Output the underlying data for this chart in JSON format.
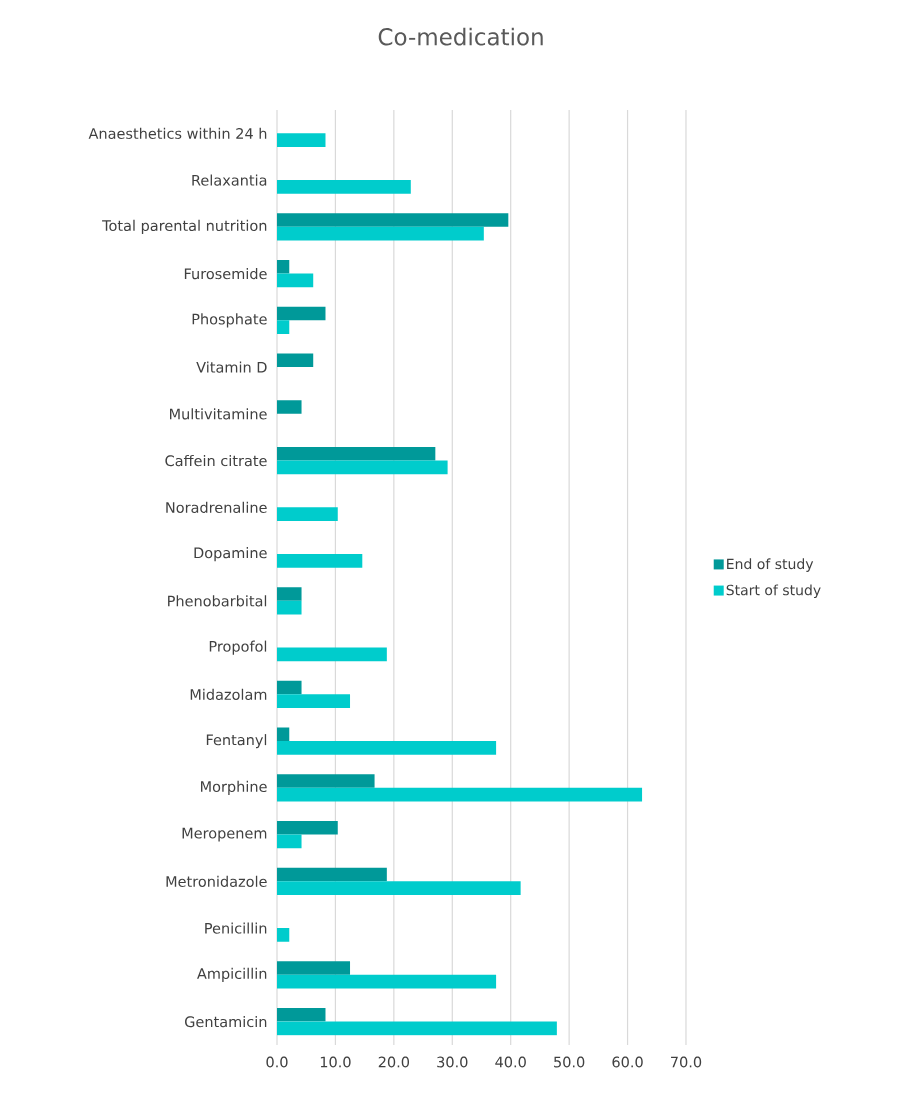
{
  "chart_data": {
    "type": "bar",
    "orientation": "horizontal",
    "title": "Co-medication",
    "categories": [
      "Anaesthetics within 24 h",
      "Relaxantia",
      "Total parental nutrition",
      "Furosemide",
      "Phosphate",
      "Vitamin D",
      "Multivitamine",
      "Caffein citrate",
      "Noradrenaline",
      "Dopamine",
      "Phenobarbital",
      "Propofol",
      "Midazolam",
      "Fentanyl",
      "Morphine",
      "Meropenem",
      "Metronidazole",
      "Penicillin",
      "Ampicillin",
      "Gentamicin"
    ],
    "series": [
      {
        "name": "End of study",
        "color": "#009999",
        "values": [
          null,
          null,
          39.6,
          2.1,
          8.3,
          6.2,
          4.2,
          27.1,
          null,
          null,
          4.2,
          null,
          4.2,
          2.1,
          16.7,
          10.4,
          18.8,
          null,
          12.5,
          8.3
        ]
      },
      {
        "name": "Start of study",
        "color": "#00cccc",
        "values": [
          8.3,
          22.9,
          35.4,
          6.2,
          2.1,
          null,
          null,
          29.2,
          10.4,
          14.6,
          4.2,
          18.8,
          12.5,
          37.5,
          62.5,
          4.2,
          41.7,
          2.1,
          37.5,
          47.9
        ]
      }
    ],
    "xlim": [
      0,
      70
    ],
    "xticks": [
      {
        "value": 0,
        "label": "0.0"
      },
      {
        "value": 10,
        "label": "10.0"
      },
      {
        "value": 20,
        "label": "20.0"
      },
      {
        "value": 30,
        "label": "30.0"
      },
      {
        "value": 40,
        "label": "40.0"
      },
      {
        "value": 50,
        "label": "50.0"
      },
      {
        "value": 60,
        "label": "60.0"
      },
      {
        "value": 70,
        "label": "70.0"
      }
    ],
    "grid": "x",
    "legend": "right"
  }
}
